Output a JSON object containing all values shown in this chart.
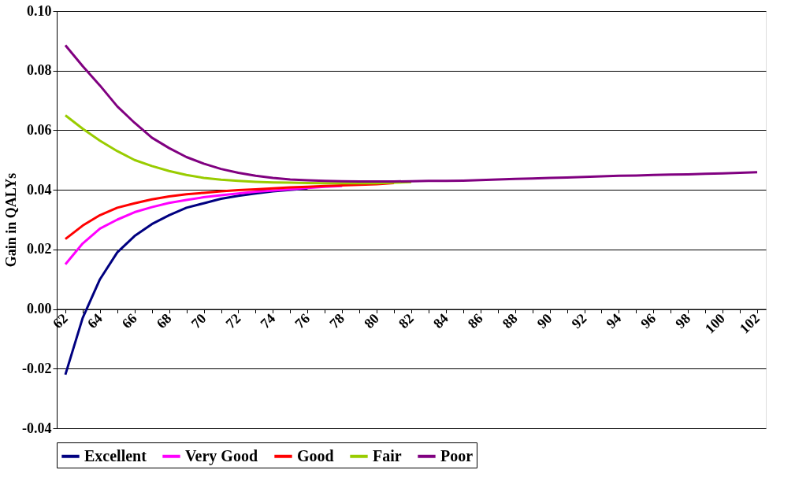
{
  "chart_data": {
    "type": "line",
    "ylabel": "Gain in QALYs",
    "categories": [
      "62",
      null,
      "64",
      null,
      "66",
      null,
      "68",
      null,
      "70",
      null,
      "72",
      null,
      "74",
      null,
      "76",
      null,
      "78",
      null,
      "80",
      null,
      "82",
      null,
      "84",
      null,
      "86",
      null,
      "88",
      null,
      "90",
      null,
      "92",
      null,
      "94",
      null,
      "96",
      null,
      "98",
      null,
      "100",
      null,
      "102"
    ],
    "series": [
      {
        "name": "Excellent",
        "color": "#000080",
        "values": [
          -0.022,
          -0.003,
          0.01,
          0.019,
          0.0245,
          0.0285,
          0.0315,
          0.034,
          0.0355,
          0.037,
          0.038,
          0.0388,
          0.0395,
          0.04,
          0.0405,
          null,
          null,
          null,
          null,
          null,
          null,
          null,
          null,
          null,
          null,
          null,
          null,
          null,
          null,
          null,
          null,
          null,
          null,
          null,
          null,
          null,
          null,
          null,
          null,
          null,
          null
        ]
      },
      {
        "name": "Very Good",
        "color": "#ff00ff",
        "values": [
          0.015,
          0.022,
          0.027,
          0.03,
          0.0325,
          0.0342,
          0.0356,
          0.0366,
          0.0375,
          0.0382,
          0.0388,
          0.0394,
          0.0398,
          0.0402,
          0.0406,
          0.041,
          0.0413,
          null,
          null,
          null,
          null,
          null,
          null,
          null,
          null,
          null,
          null,
          null,
          null,
          null,
          null,
          null,
          null,
          null,
          null,
          null,
          null,
          null,
          null,
          null,
          null
        ]
      },
      {
        "name": "Good",
        "color": "#ff0000",
        "values": [
          0.0235,
          0.028,
          0.0315,
          0.034,
          0.0355,
          0.0368,
          0.0378,
          0.0385,
          0.039,
          0.0395,
          0.0399,
          0.0402,
          0.0405,
          0.0408,
          0.041,
          0.0413,
          0.0415,
          0.0417,
          0.0419,
          0.0423,
          null,
          null,
          null,
          null,
          null,
          null,
          null,
          null,
          null,
          null,
          null,
          null,
          null,
          null,
          null,
          null,
          null,
          null,
          null,
          null,
          null
        ]
      },
      {
        "name": "Fair",
        "color": "#99cc00",
        "values": [
          0.065,
          0.0605,
          0.0565,
          0.053,
          0.05,
          0.048,
          0.0463,
          0.045,
          0.044,
          0.0434,
          0.043,
          0.0427,
          0.0425,
          0.0424,
          0.0423,
          0.0422,
          0.0422,
          0.0422,
          0.0422,
          0.0424,
          0.0426,
          null,
          null,
          null,
          null,
          null,
          null,
          null,
          null,
          null,
          null,
          null,
          null,
          null,
          null,
          null,
          null,
          null,
          null,
          null,
          null
        ]
      },
      {
        "name": "Poor",
        "color": "#800080",
        "values": [
          0.0885,
          0.0815,
          0.075,
          0.068,
          0.0625,
          0.0575,
          0.054,
          0.051,
          0.0488,
          0.047,
          0.0457,
          0.0447,
          0.044,
          0.0435,
          0.0432,
          0.043,
          0.0429,
          0.0428,
          0.0428,
          0.0428,
          0.0429,
          0.043,
          0.043,
          0.0431,
          0.0433,
          0.0435,
          0.0437,
          0.0438,
          0.044,
          0.0441,
          0.0443,
          0.0445,
          0.0447,
          0.0448,
          0.045,
          0.0451,
          0.0452,
          0.0454,
          0.0455,
          0.0457,
          0.0459
        ]
      }
    ],
    "ylim": [
      -0.04,
      0.1
    ],
    "yticks": [
      {
        "value": -0.04,
        "label": "-0.04"
      },
      {
        "value": -0.02,
        "label": "-0.02"
      },
      {
        "value": 0,
        "label": "0.00"
      },
      {
        "value": 0.02,
        "label": "0.02"
      },
      {
        "value": 0.04,
        "label": "0.04"
      },
      {
        "value": 0.06,
        "label": "0.06"
      },
      {
        "value": 0.08,
        "label": "0.08"
      },
      {
        "value": 0.1,
        "label": "0.10"
      }
    ],
    "grid": "y",
    "legend": "bottom",
    "marker": "none",
    "line_style": "solid"
  }
}
